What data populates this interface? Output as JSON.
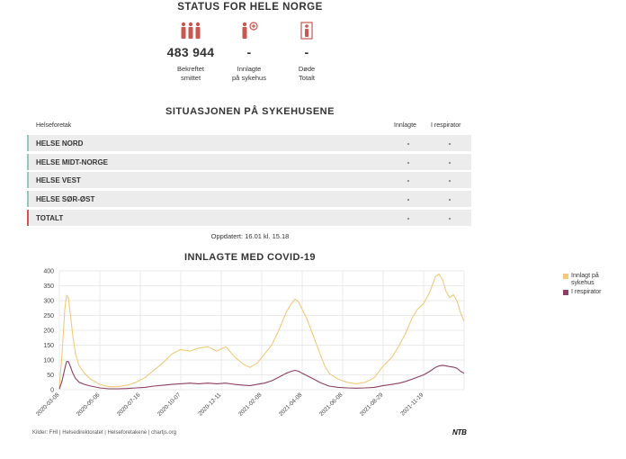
{
  "status": {
    "title": "STATUS FOR HELE NORGE",
    "cards": [
      {
        "value": "483 944",
        "label_line1": "Bekreftet",
        "label_line2": "smittet",
        "icon": "people-group-icon"
      },
      {
        "value": "-",
        "label_line1": "Innlagte",
        "label_line2": "på sykehus",
        "icon": "hospital-person-icon"
      },
      {
        "value": "-",
        "label_line1": "Døde",
        "label_line2": "Totalt",
        "icon": "deceased-person-icon"
      }
    ]
  },
  "hospitals": {
    "title": "SITUASJONEN PÅ SYKEHUSENE",
    "headers": {
      "region": "Helseforetak",
      "admitted": "Innlagte",
      "respirator": "I respirator"
    },
    "rows": [
      {
        "name": "HELSE NORD",
        "admitted": "-",
        "respirator": "-",
        "accent": "#8fcbb8"
      },
      {
        "name": "HELSE MIDT-NORGE",
        "admitted": "-",
        "respirator": "-",
        "accent": "#8fcbb8"
      },
      {
        "name": "HELSE VEST",
        "admitted": "-",
        "respirator": "-",
        "accent": "#8fcbb8"
      },
      {
        "name": "HELSE SØR-ØST",
        "admitted": "-",
        "respirator": "-",
        "accent": "#8fcbb8"
      },
      {
        "name": "TOTALT",
        "admitted": "-",
        "respirator": "-",
        "accent": "#d9534f"
      }
    ],
    "updated": "Oppdatert: 16.01 kl. 15.18"
  },
  "chart_data": {
    "type": "line",
    "title": "INNLAGTE MED COVID-19",
    "ylim": [
      0,
      400
    ],
    "yticks": [
      "0",
      "50",
      "100",
      "150",
      "200",
      "250",
      "300",
      "350",
      "400"
    ],
    "xticks": [
      "2020-03-08",
      "2020-05-06",
      "2020-07-16",
      "2020-10-07",
      "2020-12-11",
      "2021-02-08",
      "2021-04-08",
      "2021-06-08",
      "2021-08-29",
      "2021-11-19"
    ],
    "grid": true,
    "legend_position": "right",
    "series": [
      {
        "name": "Innlagt på sykehus",
        "color": "#f0c97a",
        "points": [
          [
            0,
            10
          ],
          [
            3,
            120
          ],
          [
            6,
            270
          ],
          [
            8,
            318
          ],
          [
            10,
            310
          ],
          [
            12,
            260
          ],
          [
            15,
            180
          ],
          [
            18,
            120
          ],
          [
            22,
            80
          ],
          [
            28,
            55
          ],
          [
            35,
            35
          ],
          [
            45,
            18
          ],
          [
            55,
            10
          ],
          [
            65,
            10
          ],
          [
            75,
            15
          ],
          [
            85,
            25
          ],
          [
            95,
            40
          ],
          [
            105,
            65
          ],
          [
            115,
            90
          ],
          [
            125,
            120
          ],
          [
            135,
            135
          ],
          [
            145,
            130
          ],
          [
            155,
            140
          ],
          [
            165,
            145
          ],
          [
            175,
            130
          ],
          [
            185,
            145
          ],
          [
            195,
            110
          ],
          [
            205,
            85
          ],
          [
            212,
            75
          ],
          [
            220,
            90
          ],
          [
            228,
            120
          ],
          [
            236,
            150
          ],
          [
            244,
            200
          ],
          [
            252,
            260
          ],
          [
            258,
            290
          ],
          [
            262,
            305
          ],
          [
            266,
            295
          ],
          [
            270,
            270
          ],
          [
            275,
            240
          ],
          [
            280,
            200
          ],
          [
            285,
            160
          ],
          [
            290,
            120
          ],
          [
            295,
            80
          ],
          [
            300,
            55
          ],
          [
            310,
            35
          ],
          [
            320,
            25
          ],
          [
            330,
            20
          ],
          [
            340,
            25
          ],
          [
            350,
            40
          ],
          [
            360,
            80
          ],
          [
            370,
            110
          ],
          [
            378,
            150
          ],
          [
            385,
            190
          ],
          [
            392,
            240
          ],
          [
            398,
            270
          ],
          [
            405,
            290
          ],
          [
            412,
            330
          ],
          [
            418,
            380
          ],
          [
            422,
            390
          ],
          [
            426,
            370
          ],
          [
            430,
            330
          ],
          [
            434,
            310
          ],
          [
            438,
            320
          ],
          [
            442,
            300
          ],
          [
            446,
            260
          ],
          [
            450,
            230
          ]
        ]
      },
      {
        "name": "I respirator",
        "color": "#8a3f63",
        "points": [
          [
            0,
            2
          ],
          [
            3,
            30
          ],
          [
            6,
            70
          ],
          [
            8,
            95
          ],
          [
            10,
            95
          ],
          [
            12,
            80
          ],
          [
            15,
            55
          ],
          [
            18,
            38
          ],
          [
            22,
            25
          ],
          [
            28,
            18
          ],
          [
            35,
            12
          ],
          [
            45,
            6
          ],
          [
            55,
            3
          ],
          [
            65,
            3
          ],
          [
            75,
            4
          ],
          [
            85,
            6
          ],
          [
            95,
            8
          ],
          [
            105,
            12
          ],
          [
            115,
            15
          ],
          [
            125,
            18
          ],
          [
            135,
            20
          ],
          [
            145,
            22
          ],
          [
            155,
            20
          ],
          [
            165,
            22
          ],
          [
            175,
            20
          ],
          [
            185,
            22
          ],
          [
            195,
            18
          ],
          [
            205,
            15
          ],
          [
            212,
            14
          ],
          [
            220,
            18
          ],
          [
            228,
            22
          ],
          [
            236,
            30
          ],
          [
            244,
            42
          ],
          [
            252,
            55
          ],
          [
            258,
            62
          ],
          [
            262,
            65
          ],
          [
            266,
            62
          ],
          [
            270,
            55
          ],
          [
            275,
            48
          ],
          [
            280,
            40
          ],
          [
            285,
            32
          ],
          [
            290,
            24
          ],
          [
            295,
            18
          ],
          [
            300,
            12
          ],
          [
            310,
            8
          ],
          [
            320,
            6
          ],
          [
            330,
            5
          ],
          [
            340,
            6
          ],
          [
            350,
            8
          ],
          [
            360,
            14
          ],
          [
            370,
            18
          ],
          [
            378,
            22
          ],
          [
            385,
            28
          ],
          [
            392,
            35
          ],
          [
            398,
            42
          ],
          [
            405,
            50
          ],
          [
            412,
            62
          ],
          [
            418,
            75
          ],
          [
            422,
            80
          ],
          [
            426,
            82
          ],
          [
            430,
            80
          ],
          [
            434,
            78
          ],
          [
            438,
            76
          ],
          [
            442,
            72
          ],
          [
            446,
            62
          ],
          [
            450,
            55
          ]
        ]
      }
    ]
  },
  "footer": {
    "sources": "Kilder: FHI | Helsedirektoratet | Helseforetakene | chartjs.org",
    "logo": "NTB"
  }
}
